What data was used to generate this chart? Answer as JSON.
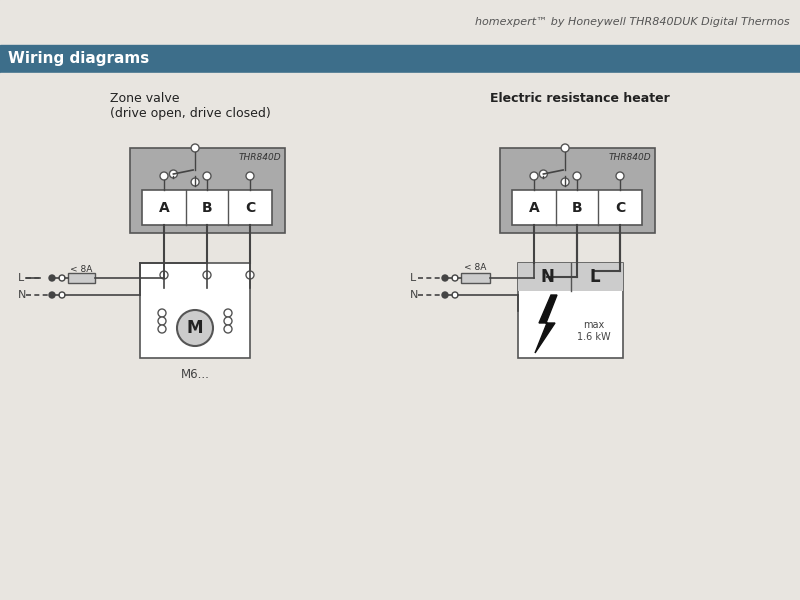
{
  "page_bg": "#dbd7d2",
  "content_bg": "#e8e5e0",
  "header_text": "homexpert™ by Honeywell THR840DUK Digital Thermos",
  "header_text_color": "#555555",
  "banner_color": "#3d6e8a",
  "banner_text": "Wiring diagrams",
  "banner_text_color": "#ffffff",
  "left_title1": "Zone valve",
  "left_title2": "(drive open, drive closed)",
  "right_title": "Electric resistance heater",
  "thr_label": "THR840D",
  "abc_labels": [
    "A",
    "B",
    "C"
  ],
  "m6_label": "M6...",
  "nl_label1": "N",
  "nl_label2": "L",
  "max_label": "max\n1.6 kW",
  "fuse_label": "< 8A",
  "L_label": "L",
  "N_label": "N",
  "wire_color": "#444444",
  "box_fill": "#aaaaaa",
  "box_stroke": "#555555",
  "white_fill": "#ffffff",
  "light_gray": "#cccccc",
  "dark_gray": "#888888"
}
